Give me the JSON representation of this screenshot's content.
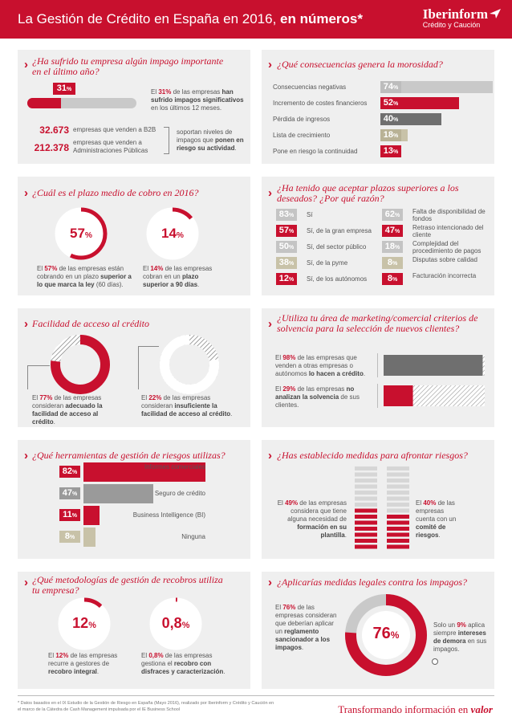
{
  "header": {
    "title_main": "La Gestión de Crédito en España en 2016, ",
    "title_bold": "en números*",
    "brand_name": "Iberinform",
    "brand_sub": "Crédito y Caución"
  },
  "impagos": {
    "question": "¿Ha sufrido tu empresa algún impago importante en el último año?",
    "percent": "31",
    "bar_fraction": 0.31,
    "desc_pre": "El ",
    "desc_pct": "31%",
    "desc_mid": " de las empresas ",
    "desc_bold": "han sufrido impagos significativos",
    "desc_post": " en los últimos 12 meses.",
    "stat1_number": "32.673",
    "stat1_label": "empresas que venden a B2B",
    "stat2_number": "212.378",
    "stat2_label": "empresas que venden a Administraciones Públicas",
    "side_pre": "soportan niveles de impagos que ",
    "side_bold": "ponen en riesgo su actividad",
    "side_post": "."
  },
  "morosidad": {
    "question": "¿Qué consecuencias genera la morosidad?",
    "items": [
      {
        "label": "Consecuencias negativas",
        "value": 74
      },
      {
        "label": "Incremento de costes financieros",
        "value": 52
      },
      {
        "label": "Pérdida de ingresos",
        "value": 40
      },
      {
        "label": "Lista de crecimiento",
        "value": 18
      },
      {
        "label": "Pone en riesgo la continuidad",
        "value": 13
      }
    ]
  },
  "plazo": {
    "question": "¿Cuál es el plazo medio de cobro en 2016?",
    "a_pct": "57",
    "a_fraction": 0.57,
    "a_pre": "El ",
    "a_red": "57%",
    "a_mid": " de las empresas están cobrando en un plazo ",
    "a_bold": "superior a lo que marca la ley",
    "a_post": " (60 días).",
    "b_pct": "14",
    "b_fraction": 0.14,
    "b_pre": "El ",
    "b_red": "14%",
    "b_mid": " de las empresas cobran en un ",
    "b_bold": "plazo superior a 90 días",
    "b_post": "."
  },
  "plazos_superiores": {
    "question": "¿Ha tenido que aceptar plazos superiores a los deseados? ¿Por qué razón?",
    "left": [
      {
        "value": 83,
        "label": "Sí"
      },
      {
        "value": 57,
        "label": "Sí, de la gran empresa"
      },
      {
        "value": 50,
        "label": "Sí, del sector público"
      },
      {
        "value": 38,
        "label": "Sí, de la pyme"
      },
      {
        "value": 12,
        "label": "Sí, de los autónomos"
      }
    ],
    "right": [
      {
        "value": 62,
        "label": "Falta de disponibilidad de fondos"
      },
      {
        "value": 47,
        "label": "Retraso intencionado del cliente"
      },
      {
        "value": 18,
        "label": "Complejidad del procedimiento de pagos"
      },
      {
        "value": 8,
        "label": "Disputas sobre calidad"
      },
      {
        "value": 8,
        "label": "Facturación incorrecta"
      }
    ]
  },
  "acceso": {
    "question": "Facilidad de acceso al crédito",
    "a_fraction": 0.77,
    "a_pre": "El ",
    "a_red": "77%",
    "a_mid": " de las empresas consideran ",
    "a_bold": "adecuado la facilidad de acceso al crédito",
    "a_post": ".",
    "b_fraction": 0.22,
    "b_pre": "El ",
    "b_red": "22%",
    "b_mid": " de las empresas consideran ",
    "b_bold": "insuficiente la facilidad de acceso al crédito",
    "b_post": "."
  },
  "marketing": {
    "question": "¿Utiliza tu área de marketing/comercial criterios de solvencia para la selección de nuevos clientes?",
    "a_fraction": 0.98,
    "a_pre": "El ",
    "a_red": "98%",
    "a_mid": " de las empresas que venden a otras empresas o autónomos ",
    "a_bold": "lo hacen a crédito",
    "a_post": ".",
    "b_fraction": 0.29,
    "b_pre": "El ",
    "b_red": "29%",
    "b_mid": " de las empresas ",
    "b_bold": "no analizan la solvencia",
    "b_post": " de sus clientes."
  },
  "herramientas": {
    "question": "¿Qué herramientas de gestión de riesgos utilizas?",
    "items": [
      {
        "value": 82,
        "label": "Informes comerciales"
      },
      {
        "value": 47,
        "label": "Seguro de crédito"
      },
      {
        "value": 11,
        "label": "Business Intelligence (BI)"
      },
      {
        "value": 8,
        "label": "Ninguna"
      }
    ]
  },
  "medidas": {
    "question": "¿Has establecido medidas para afrontar riesgos?",
    "a_fraction": 0.49,
    "a_pre": "El ",
    "a_red": "49%",
    "a_mid": " de las empresas considera que tiene alguna necesidad de ",
    "a_bold": "formación en su plantilla",
    "a_post": ".",
    "b_fraction": 0.4,
    "b_pre": "El ",
    "b_red": "40%",
    "b_mid": " de las empresas cuenta con un ",
    "b_bold": "comité de riesgos",
    "b_post": "."
  },
  "recobros": {
    "question": "¿Qué metodologías de gestión de recobros utiliza tu empresa?",
    "a_pct": "12",
    "a_fraction": 0.12,
    "a_pre": "El ",
    "a_red": "12%",
    "a_mid": " de las empresas recurre a gestores de ",
    "a_bold": "recobro integral",
    "a_post": ".",
    "b_pct": "0,8",
    "b_fraction": 0.008,
    "b_pre": "El ",
    "b_red": "0,8%",
    "b_mid": " de las empresas gestiona el ",
    "b_bold": "recobro con disfraces y caracterización",
    "b_post": "."
  },
  "legales": {
    "question": "¿Aplicarías medidas legales contra los impagos?",
    "pct": "76",
    "fraction": 0.76,
    "a_pre": "El ",
    "a_red": "76%",
    "a_mid": " de las empresas consideran que deberían aplicar un ",
    "a_bold": "reglamento sancionador a los impagos",
    "a_post": ".",
    "b_pre": "Solo un ",
    "b_red": "9%",
    "b_mid": " aplica siempre ",
    "b_bold": "intereses de demora",
    "b_post": " en sus impagos."
  },
  "footer": {
    "note": "* Datos basados en el IX Estudio de la Gestión de Riesgo en España (Mayo 2016), realizado por Iberinform y Crédito y Caución en el marco de la Cátedra de Cash Management impulsada por el IE Business School",
    "tagline_main": "Transformando información en ",
    "tagline_em": "valor"
  },
  "colors": {
    "red": "#c8102e",
    "dark_grey": "#6f6f6f",
    "mid_grey": "#9a9a9a",
    "light_grey": "#c9c9c9",
    "beige": "#c8c2a8",
    "panel": "#efefef"
  }
}
